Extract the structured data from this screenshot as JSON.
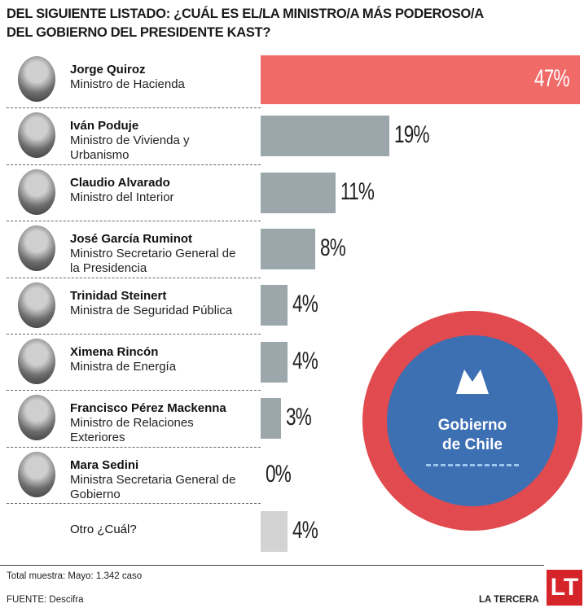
{
  "chart_data": {
    "type": "bar",
    "orientation": "horizontal",
    "title": "DEL SIGUIENTE LISTADO: ¿CUÁL ES EL/LA MINISTRO/A MÁS PODEROSO/A DEL GOBIERNO DEL PRESIDENTE KAST?",
    "categories": [
      "Jorge Quiroz",
      "Iván Poduje",
      "Claudio Alvarado",
      "José García Ruminot",
      "Trinidad Steinert",
      "Ximena Rincón",
      "Francisco Pérez Mackenna",
      "Mara Sedini",
      "Otro ¿Cuál?"
    ],
    "roles": [
      "Ministro de Hacienda",
      "Ministro de Vivienda y Urbanismo",
      "Ministro del Interior",
      "Ministro Secretario General de la Presidencia",
      "Ministra de Seguridad Pública",
      "Ministra de Energía",
      "Ministro de Relaciones Exteriores",
      "Ministra Secretaria General de Gobierno",
      null
    ],
    "values": [
      47,
      19,
      11,
      8,
      4,
      4,
      3,
      0,
      4
    ],
    "value_labels": [
      "47%",
      "19%",
      "11%",
      "8%",
      "4%",
      "4%",
      "3%",
      "0%",
      "4%"
    ],
    "colors": [
      "#f06a68",
      "#9ba7aa",
      "#9ba7aa",
      "#9ba7aa",
      "#9ba7aa",
      "#9ba7aa",
      "#9ba7aa",
      "#9ba7aa",
      "#d3d3d3"
    ]
  },
  "logo": [
    "Gobierno",
    "de Chile"
  ],
  "footer": {
    "note": "Total muestra: Mayo: 1.342 caso",
    "source": "FUENTE: Descifra",
    "brand": "LA TERCERA",
    "brand_mark": "LT"
  }
}
